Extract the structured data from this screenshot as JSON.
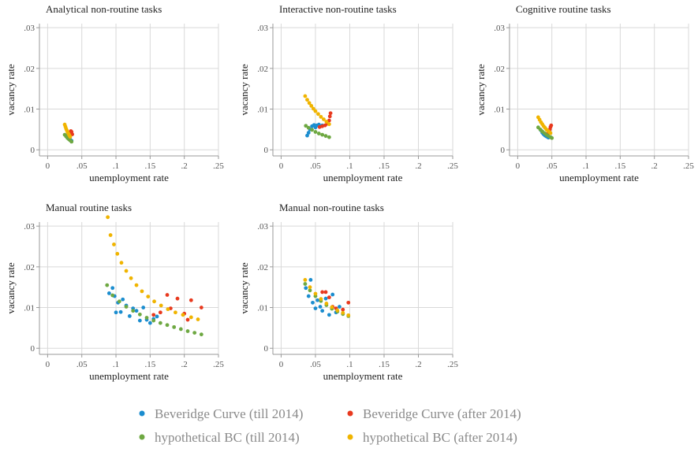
{
  "chart_data": [
    {
      "type": "scatter",
      "title": "Analytical non-routine tasks",
      "x_label": "unemployment rate",
      "y_label": "vacancy rate",
      "xlim": [
        -0.012,
        0.25
      ],
      "ylim": [
        -0.0015,
        0.031
      ],
      "xticks": [
        0,
        {
          "value": 0.05,
          "label": ".05"
        },
        {
          "value": 0.1,
          "label": ".1"
        },
        {
          "value": 0.15,
          "label": ".15"
        },
        {
          "value": 0.2,
          "label": ".2"
        },
        {
          "value": 0.25,
          "label": ".25"
        }
      ],
      "yticks": [
        0,
        {
          "value": 0.01,
          "label": ".01"
        },
        {
          "value": 0.02,
          "label": ".02"
        },
        {
          "value": 0.03,
          "label": ".03"
        }
      ],
      "series": [
        {
          "name": "Beveridge Curve (till 2014)",
          "color": "#1b8dcf",
          "x": [
            0.029,
            0.03,
            0.031,
            0.032,
            0.033,
            0.034,
            0.035
          ],
          "values": [
            0.0036,
            0.0032,
            0.003,
            0.0028,
            0.0025,
            0.0023,
            0.0022
          ]
        },
        {
          "name": "Beveridge Curve (after 2014)",
          "color": "#e8391e",
          "x": [
            0.033,
            0.034,
            0.035,
            0.036
          ],
          "values": [
            0.0041,
            0.0046,
            0.0044,
            0.0038
          ]
        },
        {
          "name": "hypothetical BC (till 2014)",
          "color": "#6ea842",
          "x": [
            0.025,
            0.027,
            0.029,
            0.031,
            0.033,
            0.035
          ],
          "values": [
            0.0037,
            0.0033,
            0.0029,
            0.0026,
            0.0023,
            0.002
          ]
        },
        {
          "name": "hypothetical BC (after 2014)",
          "color": "#f0b400",
          "x": [
            0.025,
            0.026,
            0.027,
            0.028,
            0.029,
            0.03,
            0.031,
            0.032,
            0.033
          ],
          "values": [
            0.0062,
            0.0057,
            0.0052,
            0.0048,
            0.0044,
            0.0041,
            0.0038,
            0.0035,
            0.0032
          ]
        }
      ]
    },
    {
      "type": "scatter",
      "title": "Interactive non-routine tasks",
      "x_label": "unemployment rate",
      "y_label": "vacancy rate",
      "xlim": [
        -0.012,
        0.25
      ],
      "ylim": [
        -0.0015,
        0.031
      ],
      "xticks": [
        0,
        {
          "value": 0.05,
          "label": ".05"
        },
        {
          "value": 0.1,
          "label": ".1"
        },
        {
          "value": 0.15,
          "label": ".15"
        },
        {
          "value": 0.2,
          "label": ".2"
        },
        {
          "value": 0.25,
          "label": ".25"
        }
      ],
      "yticks": [
        0,
        {
          "value": 0.01,
          "label": ".01"
        },
        {
          "value": 0.02,
          "label": ".02"
        },
        {
          "value": 0.03,
          "label": ".03"
        }
      ],
      "series": [
        {
          "name": "Beveridge Curve (till 2014)",
          "color": "#1b8dcf",
          "x": [
            0.038,
            0.04,
            0.042,
            0.045,
            0.048,
            0.05,
            0.052,
            0.055,
            0.058,
            0.06
          ],
          "values": [
            0.0035,
            0.0042,
            0.005,
            0.0058,
            0.0061,
            0.0055,
            0.006,
            0.0062,
            0.0058,
            0.006
          ]
        },
        {
          "name": "Beveridge Curve (after 2014)",
          "color": "#e8391e",
          "x": [
            0.056,
            0.06,
            0.064,
            0.067,
            0.07,
            0.071,
            0.072
          ],
          "values": [
            0.0056,
            0.0058,
            0.006,
            0.0064,
            0.0072,
            0.0082,
            0.009
          ]
        },
        {
          "name": "hypothetical BC (till 2014)",
          "color": "#6ea842",
          "x": [
            0.036,
            0.04,
            0.045,
            0.05,
            0.055,
            0.06,
            0.065,
            0.07
          ],
          "values": [
            0.0059,
            0.0054,
            0.0049,
            0.0044,
            0.004,
            0.0037,
            0.0034,
            0.0031
          ]
        },
        {
          "name": "hypothetical BC (after 2014)",
          "color": "#f0b400",
          "x": [
            0.035,
            0.038,
            0.041,
            0.044,
            0.047,
            0.05,
            0.054,
            0.058,
            0.062,
            0.066,
            0.07
          ],
          "values": [
            0.0132,
            0.0123,
            0.0115,
            0.0108,
            0.0101,
            0.0095,
            0.0088,
            0.0081,
            0.0075,
            0.0069,
            0.0063
          ]
        }
      ]
    },
    {
      "type": "scatter",
      "title": "Cognitive routine tasks",
      "x_label": "unemployment rate",
      "y_label": "vacancy rate",
      "xlim": [
        -0.012,
        0.25
      ],
      "ylim": [
        -0.0015,
        0.031
      ],
      "xticks": [
        0,
        {
          "value": 0.05,
          "label": ".05"
        },
        {
          "value": 0.1,
          "label": ".1"
        },
        {
          "value": 0.15,
          "label": ".15"
        },
        {
          "value": 0.2,
          "label": ".2"
        },
        {
          "value": 0.25,
          "label": ".25"
        }
      ],
      "yticks": [
        0,
        {
          "value": 0.01,
          "label": ".01"
        },
        {
          "value": 0.02,
          "label": ".02"
        },
        {
          "value": 0.03,
          "label": ".03"
        }
      ],
      "series": [
        {
          "name": "Beveridge Curve (till 2014)",
          "color": "#1b8dcf",
          "x": [
            0.034,
            0.036,
            0.038,
            0.04,
            0.042,
            0.044,
            0.045
          ],
          "values": [
            0.0048,
            0.0042,
            0.0038,
            0.0035,
            0.0033,
            0.0031,
            0.003
          ]
        },
        {
          "name": "Beveridge Curve (after 2014)",
          "color": "#e8391e",
          "x": [
            0.044,
            0.046,
            0.047,
            0.048,
            0.049
          ],
          "values": [
            0.004,
            0.0045,
            0.005,
            0.0056,
            0.006
          ]
        },
        {
          "name": "hypothetical BC (till 2014)",
          "color": "#6ea842",
          "x": [
            0.03,
            0.033,
            0.036,
            0.039,
            0.042,
            0.045,
            0.048,
            0.05
          ],
          "values": [
            0.0055,
            0.005,
            0.0045,
            0.0041,
            0.0037,
            0.0034,
            0.0031,
            0.0029
          ]
        },
        {
          "name": "hypothetical BC (after 2014)",
          "color": "#f0b400",
          "x": [
            0.03,
            0.032,
            0.034,
            0.036,
            0.038,
            0.04,
            0.042,
            0.044,
            0.046,
            0.048
          ],
          "values": [
            0.008,
            0.0074,
            0.0068,
            0.0063,
            0.0058,
            0.0054,
            0.005,
            0.0047,
            0.0044,
            0.0041
          ]
        }
      ]
    },
    {
      "type": "scatter",
      "title": "Manual routine tasks",
      "x_label": "unemployment rate",
      "y_label": "vacancy rate",
      "xlim": [
        -0.012,
        0.25
      ],
      "ylim": [
        -0.0015,
        0.031
      ],
      "xticks": [
        0,
        {
          "value": 0.05,
          "label": ".05"
        },
        {
          "value": 0.1,
          "label": ".1"
        },
        {
          "value": 0.15,
          "label": ".15"
        },
        {
          "value": 0.2,
          "label": ".2"
        },
        {
          "value": 0.25,
          "label": ".25"
        }
      ],
      "yticks": [
        0,
        {
          "value": 0.01,
          "label": ".01"
        },
        {
          "value": 0.02,
          "label": ".02"
        },
        {
          "value": 0.03,
          "label": ".03"
        }
      ],
      "series": [
        {
          "name": "Beveridge Curve (till 2014)",
          "color": "#1b8dcf",
          "x": [
            0.09,
            0.095,
            0.098,
            0.1,
            0.103,
            0.107,
            0.11,
            0.115,
            0.12,
            0.125,
            0.13,
            0.135,
            0.14,
            0.145,
            0.15,
            0.155,
            0.16
          ],
          "values": [
            0.0135,
            0.0148,
            0.0128,
            0.0088,
            0.0112,
            0.0089,
            0.012,
            0.0105,
            0.0079,
            0.0098,
            0.0092,
            0.0068,
            0.01,
            0.007,
            0.0062,
            0.0072,
            0.0078
          ]
        },
        {
          "name": "Beveridge Curve (after 2014)",
          "color": "#e8391e",
          "x": [
            0.155,
            0.165,
            0.175,
            0.18,
            0.19,
            0.2,
            0.205,
            0.21,
            0.225
          ],
          "values": [
            0.0082,
            0.0088,
            0.0131,
            0.0098,
            0.0122,
            0.0085,
            0.007,
            0.0118,
            0.01
          ]
        },
        {
          "name": "hypothetical BC (till 2014)",
          "color": "#6ea842",
          "x": [
            0.087,
            0.095,
            0.105,
            0.115,
            0.125,
            0.135,
            0.145,
            0.155,
            0.165,
            0.175,
            0.185,
            0.195,
            0.205,
            0.215,
            0.225
          ],
          "values": [
            0.0155,
            0.013,
            0.0115,
            0.0102,
            0.0092,
            0.0083,
            0.0075,
            0.0068,
            0.0062,
            0.0057,
            0.0052,
            0.0047,
            0.0042,
            0.0038,
            0.0034
          ]
        },
        {
          "name": "hypothetical BC (after 2014)",
          "color": "#f0b400",
          "x": [
            0.088,
            0.092,
            0.097,
            0.102,
            0.108,
            0.115,
            0.122,
            0.13,
            0.138,
            0.147,
            0.156,
            0.166,
            0.176,
            0.187,
            0.198,
            0.21,
            0.22
          ],
          "values": [
            0.0322,
            0.0278,
            0.0255,
            0.0232,
            0.021,
            0.019,
            0.0172,
            0.0155,
            0.014,
            0.0127,
            0.0115,
            0.0105,
            0.0096,
            0.0088,
            0.0082,
            0.0076,
            0.0071
          ]
        }
      ]
    },
    {
      "type": "scatter",
      "title": "Manual non-routine tasks",
      "x_label": "unemployment rate",
      "y_label": "vacancy rate",
      "xlim": [
        -0.012,
        0.25
      ],
      "ylim": [
        -0.0015,
        0.031
      ],
      "xticks": [
        0,
        {
          "value": 0.05,
          "label": ".05"
        },
        {
          "value": 0.1,
          "label": ".1"
        },
        {
          "value": 0.15,
          "label": ".15"
        },
        {
          "value": 0.2,
          "label": ".2"
        },
        {
          "value": 0.25,
          "label": ".25"
        }
      ],
      "yticks": [
        0,
        {
          "value": 0.01,
          "label": ".01"
        },
        {
          "value": 0.02,
          "label": ".02"
        },
        {
          "value": 0.03,
          "label": ".03"
        }
      ],
      "series": [
        {
          "name": "Beveridge Curve (till 2014)",
          "color": "#1b8dcf",
          "x": [
            0.036,
            0.04,
            0.043,
            0.046,
            0.05,
            0.053,
            0.057,
            0.06,
            0.065,
            0.07,
            0.075,
            0.08,
            0.085,
            0.09
          ],
          "values": [
            0.0148,
            0.0128,
            0.0168,
            0.0112,
            0.0098,
            0.0118,
            0.0102,
            0.0092,
            0.0122,
            0.0082,
            0.0132,
            0.0088,
            0.0102,
            0.0085
          ]
        },
        {
          "name": "Beveridge Curve (after 2014)",
          "color": "#e8391e",
          "x": [
            0.06,
            0.065,
            0.07,
            0.075,
            0.08,
            0.09,
            0.098
          ],
          "values": [
            0.0138,
            0.0138,
            0.0125,
            0.0102,
            0.0098,
            0.0095,
            0.0112
          ]
        },
        {
          "name": "hypothetical BC (till 2014)",
          "color": "#6ea842",
          "x": [
            0.035,
            0.042,
            0.05,
            0.058,
            0.066,
            0.074,
            0.082,
            0.09,
            0.098
          ],
          "values": [
            0.0158,
            0.0142,
            0.0128,
            0.0116,
            0.0106,
            0.0097,
            0.009,
            0.0084,
            0.0079
          ]
        },
        {
          "name": "hypothetical BC (after 2014)",
          "color": "#f0b400",
          "x": [
            0.035,
            0.042,
            0.05,
            0.058,
            0.066,
            0.074,
            0.082,
            0.09,
            0.098
          ],
          "values": [
            0.0168,
            0.015,
            0.0134,
            0.0121,
            0.011,
            0.0101,
            0.0093,
            0.0087,
            0.0081
          ]
        }
      ]
    }
  ]
}
